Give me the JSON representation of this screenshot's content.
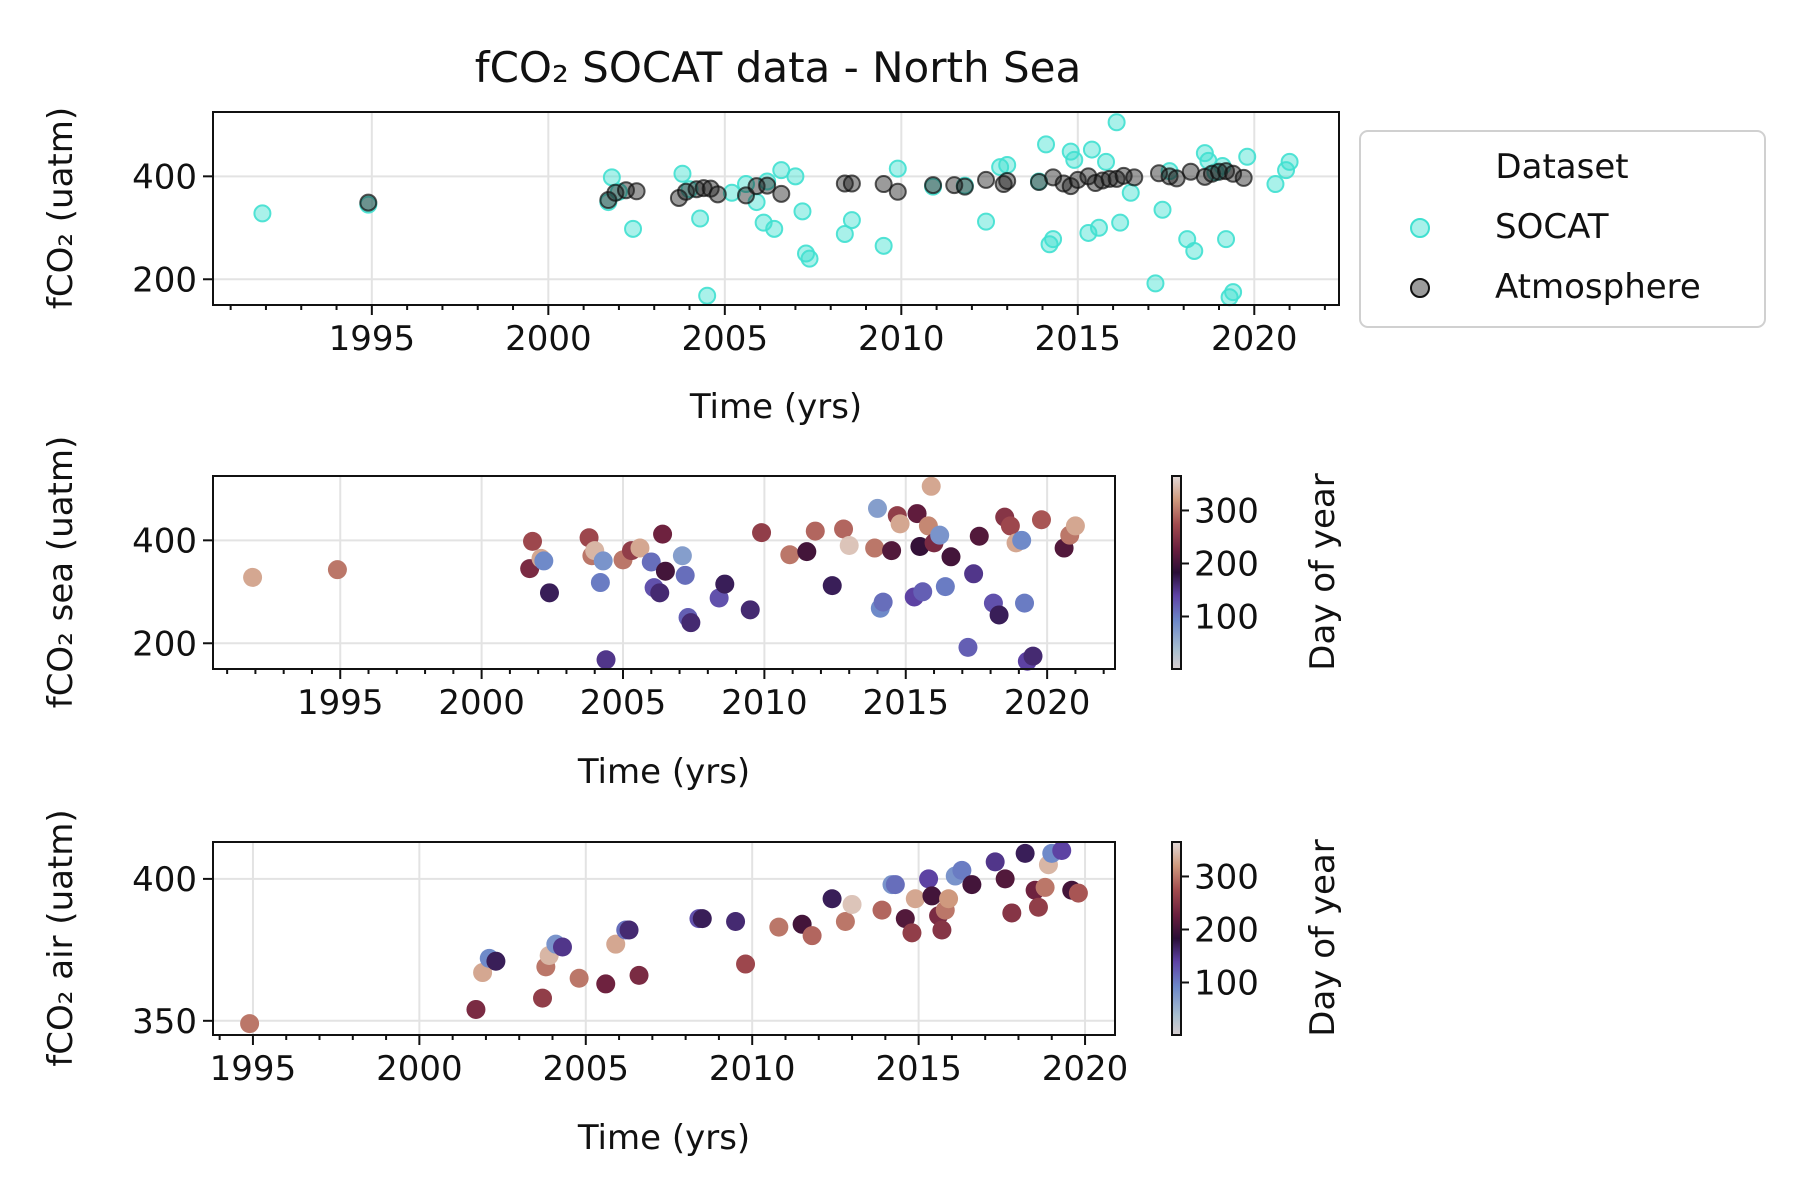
{
  "figure": {
    "title": "fCO₂ SOCAT data - North Sea",
    "colorbar_label": "Day of year",
    "colormap": "twilight_shifted (day of year)",
    "legend": {
      "title": "Dataset",
      "placement": "outside right of top panel",
      "entries": [
        {
          "label": "SOCAT",
          "color": "#40e0d0"
        },
        {
          "label": "Atmosphere",
          "color": "#222222"
        }
      ]
    }
  },
  "chart_data": [
    {
      "type": "scatter",
      "panel": "top",
      "xlabel": "Time (yrs)",
      "ylabel": "fCO₂ (uatm)",
      "xlim": [
        1990.5,
        2022.4
      ],
      "ylim": [
        150,
        525
      ],
      "xticks": [
        1995,
        2000,
        2005,
        2010,
        2015,
        2020
      ],
      "yticks": [
        200,
        400
      ],
      "grid": true,
      "series": [
        {
          "name": "SOCAT",
          "color": "#40e0d0",
          "x": [
            1991.9,
            1994.9,
            2001.7,
            2001.8,
            2002.0,
            2002.4,
            2003.8,
            2004.0,
            2004.3,
            2004.5,
            2005.2,
            2005.6,
            2005.9,
            2006.1,
            2006.2,
            2006.4,
            2006.6,
            2007.0,
            2007.2,
            2007.3,
            2007.4,
            2008.4,
            2008.6,
            2009.5,
            2009.9,
            2010.9,
            2011.8,
            2012.4,
            2012.8,
            2013.0,
            2013.9,
            2014.1,
            2014.2,
            2014.3,
            2014.8,
            2014.9,
            2015.3,
            2015.4,
            2015.6,
            2015.8,
            2016.1,
            2016.2,
            2016.5,
            2017.2,
            2017.4,
            2017.6,
            2018.1,
            2018.3,
            2018.6,
            2018.7,
            2018.9,
            2019.1,
            2019.2,
            2019.3,
            2019.4,
            2019.8,
            2020.6,
            2020.9,
            2021.0
          ],
          "y": [
            328,
            345,
            350,
            398,
            370,
            298,
            405,
            375,
            318,
            168,
            368,
            385,
            350,
            310,
            390,
            298,
            412,
            400,
            332,
            250,
            240,
            288,
            315,
            265,
            415,
            380,
            382,
            312,
            418,
            422,
            390,
            462,
            268,
            278,
            448,
            432,
            290,
            452,
            300,
            428,
            505,
            310,
            368,
            192,
            335,
            410,
            278,
            255,
            445,
            430,
            408,
            420,
            278,
            165,
            175,
            438,
            385,
            412,
            428
          ]
        },
        {
          "name": "Atmosphere",
          "color": "#222222",
          "x": [
            1994.9,
            2001.7,
            2001.9,
            2002.2,
            2002.5,
            2003.7,
            2003.9,
            2004.2,
            2004.4,
            2004.6,
            2004.8,
            2005.6,
            2005.9,
            2006.2,
            2006.6,
            2008.4,
            2008.6,
            2009.5,
            2009.9,
            2010.9,
            2011.5,
            2011.8,
            2012.4,
            2012.9,
            2013.0,
            2013.9,
            2014.3,
            2014.6,
            2014.8,
            2015.0,
            2015.3,
            2015.5,
            2015.7,
            2015.9,
            2016.1,
            2016.3,
            2016.6,
            2017.3,
            2017.6,
            2017.8,
            2018.2,
            2018.6,
            2018.8,
            2019.0,
            2019.2,
            2019.4,
            2019.7
          ],
          "y": [
            349,
            354,
            368,
            373,
            371,
            358,
            370,
            375,
            377,
            376,
            365,
            363,
            381,
            382,
            366,
            386,
            386,
            385,
            370,
            383,
            383,
            380,
            393,
            385,
            391,
            389,
            398,
            386,
            381,
            393,
            400,
            387,
            392,
            395,
            395,
            401,
            398,
            406,
            400,
            396,
            409,
            399,
            405,
            409,
            410,
            405,
            397
          ]
        }
      ]
    },
    {
      "type": "scatter",
      "panel": "middle",
      "color_by": "Day of year",
      "xlabel": "Time (yrs)",
      "ylabel": "fCO₂ sea (uatm)",
      "xlim": [
        1990.5,
        2022.4
      ],
      "ylim": [
        150,
        525
      ],
      "xticks": [
        1995,
        2000,
        2005,
        2010,
        2015,
        2020
      ],
      "yticks": [
        200,
        400
      ],
      "colorbar_ticks": [
        100,
        200,
        300
      ],
      "colorbar_range": [
        1,
        365
      ],
      "grid": true,
      "points": [
        {
          "x": 1991.9,
          "y": 328,
          "c": 330
        },
        {
          "x": 1994.9,
          "y": 343,
          "c": 300
        },
        {
          "x": 2001.7,
          "y": 345,
          "c": 240
        },
        {
          "x": 2001.8,
          "y": 398,
          "c": 270
        },
        {
          "x": 2002.1,
          "y": 365,
          "c": 330
        },
        {
          "x": 2002.2,
          "y": 360,
          "c": 90
        },
        {
          "x": 2002.4,
          "y": 298,
          "c": 170
        },
        {
          "x": 2003.8,
          "y": 405,
          "c": 270
        },
        {
          "x": 2003.9,
          "y": 370,
          "c": 300
        },
        {
          "x": 2004.0,
          "y": 380,
          "c": 340
        },
        {
          "x": 2004.2,
          "y": 318,
          "c": 100
        },
        {
          "x": 2004.4,
          "y": 168,
          "c": 150
        },
        {
          "x": 2004.3,
          "y": 360,
          "c": 80
        },
        {
          "x": 2005.0,
          "y": 362,
          "c": 300
        },
        {
          "x": 2005.3,
          "y": 380,
          "c": 260
        },
        {
          "x": 2005.6,
          "y": 385,
          "c": 330
        },
        {
          "x": 2006.0,
          "y": 358,
          "c": 110
        },
        {
          "x": 2006.1,
          "y": 308,
          "c": 130
        },
        {
          "x": 2006.3,
          "y": 298,
          "c": 160
        },
        {
          "x": 2006.4,
          "y": 412,
          "c": 230
        },
        {
          "x": 2006.5,
          "y": 340,
          "c": 200
        },
        {
          "x": 2007.1,
          "y": 370,
          "c": 70
        },
        {
          "x": 2007.2,
          "y": 332,
          "c": 110
        },
        {
          "x": 2007.3,
          "y": 250,
          "c": 120
        },
        {
          "x": 2007.4,
          "y": 240,
          "c": 160
        },
        {
          "x": 2008.4,
          "y": 288,
          "c": 130
        },
        {
          "x": 2008.6,
          "y": 315,
          "c": 170
        },
        {
          "x": 2009.5,
          "y": 265,
          "c": 160
        },
        {
          "x": 2009.9,
          "y": 415,
          "c": 260
        },
        {
          "x": 2010.9,
          "y": 372,
          "c": 300
        },
        {
          "x": 2011.5,
          "y": 378,
          "c": 200
        },
        {
          "x": 2011.8,
          "y": 418,
          "c": 290
        },
        {
          "x": 2012.4,
          "y": 312,
          "c": 170
        },
        {
          "x": 2012.8,
          "y": 422,
          "c": 290
        },
        {
          "x": 2013.0,
          "y": 390,
          "c": 350
        },
        {
          "x": 2013.9,
          "y": 385,
          "c": 300
        },
        {
          "x": 2014.0,
          "y": 462,
          "c": 70
        },
        {
          "x": 2014.1,
          "y": 268,
          "c": 90
        },
        {
          "x": 2014.2,
          "y": 280,
          "c": 110
        },
        {
          "x": 2014.5,
          "y": 380,
          "c": 210
        },
        {
          "x": 2014.7,
          "y": 448,
          "c": 260
        },
        {
          "x": 2014.8,
          "y": 432,
          "c": 330
        },
        {
          "x": 2015.3,
          "y": 290,
          "c": 140
        },
        {
          "x": 2015.4,
          "y": 452,
          "c": 220
        },
        {
          "x": 2015.5,
          "y": 388,
          "c": 190
        },
        {
          "x": 2015.6,
          "y": 300,
          "c": 120
        },
        {
          "x": 2015.8,
          "y": 428,
          "c": 310
        },
        {
          "x": 2015.9,
          "y": 505,
          "c": 330
        },
        {
          "x": 2016.0,
          "y": 395,
          "c": 240
        },
        {
          "x": 2016.2,
          "y": 410,
          "c": 80
        },
        {
          "x": 2016.4,
          "y": 310,
          "c": 100
        },
        {
          "x": 2016.6,
          "y": 368,
          "c": 200
        },
        {
          "x": 2017.2,
          "y": 192,
          "c": 120
        },
        {
          "x": 2017.4,
          "y": 335,
          "c": 150
        },
        {
          "x": 2017.6,
          "y": 408,
          "c": 210
        },
        {
          "x": 2018.1,
          "y": 278,
          "c": 130
        },
        {
          "x": 2018.3,
          "y": 255,
          "c": 170
        },
        {
          "x": 2018.5,
          "y": 445,
          "c": 250
        },
        {
          "x": 2018.7,
          "y": 428,
          "c": 270
        },
        {
          "x": 2018.9,
          "y": 395,
          "c": 330
        },
        {
          "x": 2019.1,
          "y": 400,
          "c": 90
        },
        {
          "x": 2019.2,
          "y": 278,
          "c": 100
        },
        {
          "x": 2019.3,
          "y": 165,
          "c": 140
        },
        {
          "x": 2019.5,
          "y": 175,
          "c": 160
        },
        {
          "x": 2019.8,
          "y": 440,
          "c": 280
        },
        {
          "x": 2020.6,
          "y": 385,
          "c": 210
        },
        {
          "x": 2020.8,
          "y": 410,
          "c": 300
        },
        {
          "x": 2021.0,
          "y": 428,
          "c": 330
        }
      ]
    },
    {
      "type": "scatter",
      "panel": "bottom",
      "color_by": "Day of year",
      "xlabel": "Time (yrs)",
      "ylabel": "fCO₂ air (uatm)",
      "xlim": [
        1993.8,
        2020.9
      ],
      "ylim": [
        345,
        413
      ],
      "xticks": [
        1995,
        2000,
        2005,
        2010,
        2015,
        2020
      ],
      "yticks": [
        350,
        400
      ],
      "colorbar_ticks": [
        100,
        200,
        300
      ],
      "colorbar_range": [
        1,
        365
      ],
      "grid": true,
      "points": [
        {
          "x": 1994.9,
          "y": 349,
          "c": 300
        },
        {
          "x": 2001.7,
          "y": 354,
          "c": 240
        },
        {
          "x": 2001.9,
          "y": 367,
          "c": 330
        },
        {
          "x": 2002.1,
          "y": 372,
          "c": 90
        },
        {
          "x": 2002.3,
          "y": 371,
          "c": 170
        },
        {
          "x": 2003.7,
          "y": 358,
          "c": 260
        },
        {
          "x": 2003.8,
          "y": 369,
          "c": 300
        },
        {
          "x": 2003.9,
          "y": 373,
          "c": 340
        },
        {
          "x": 2004.1,
          "y": 377,
          "c": 80
        },
        {
          "x": 2004.3,
          "y": 376,
          "c": 150
        },
        {
          "x": 2004.8,
          "y": 365,
          "c": 300
        },
        {
          "x": 2005.6,
          "y": 363,
          "c": 230
        },
        {
          "x": 2005.9,
          "y": 377,
          "c": 330
        },
        {
          "x": 2006.2,
          "y": 382,
          "c": 110
        },
        {
          "x": 2006.3,
          "y": 382,
          "c": 160
        },
        {
          "x": 2006.6,
          "y": 366,
          "c": 240
        },
        {
          "x": 2008.4,
          "y": 386,
          "c": 130
        },
        {
          "x": 2008.5,
          "y": 386,
          "c": 170
        },
        {
          "x": 2009.5,
          "y": 385,
          "c": 160
        },
        {
          "x": 2009.8,
          "y": 370,
          "c": 270
        },
        {
          "x": 2010.8,
          "y": 383,
          "c": 300
        },
        {
          "x": 2011.5,
          "y": 384,
          "c": 200
        },
        {
          "x": 2011.8,
          "y": 380,
          "c": 290
        },
        {
          "x": 2012.4,
          "y": 393,
          "c": 170
        },
        {
          "x": 2012.8,
          "y": 385,
          "c": 300
        },
        {
          "x": 2013.0,
          "y": 391,
          "c": 350
        },
        {
          "x": 2013.9,
          "y": 389,
          "c": 290
        },
        {
          "x": 2014.2,
          "y": 398,
          "c": 80
        },
        {
          "x": 2014.3,
          "y": 398,
          "c": 110
        },
        {
          "x": 2014.6,
          "y": 386,
          "c": 210
        },
        {
          "x": 2014.8,
          "y": 381,
          "c": 260
        },
        {
          "x": 2014.9,
          "y": 393,
          "c": 330
        },
        {
          "x": 2015.3,
          "y": 400,
          "c": 140
        },
        {
          "x": 2015.4,
          "y": 394,
          "c": 200
        },
        {
          "x": 2015.6,
          "y": 387,
          "c": 240
        },
        {
          "x": 2015.7,
          "y": 382,
          "c": 250
        },
        {
          "x": 2015.8,
          "y": 389,
          "c": 300
        },
        {
          "x": 2015.9,
          "y": 393,
          "c": 320
        },
        {
          "x": 2016.1,
          "y": 401,
          "c": 80
        },
        {
          "x": 2016.3,
          "y": 403,
          "c": 100
        },
        {
          "x": 2016.6,
          "y": 398,
          "c": 200
        },
        {
          "x": 2017.3,
          "y": 406,
          "c": 150
        },
        {
          "x": 2017.6,
          "y": 400,
          "c": 210
        },
        {
          "x": 2017.8,
          "y": 388,
          "c": 250
        },
        {
          "x": 2018.2,
          "y": 409,
          "c": 170
        },
        {
          "x": 2018.5,
          "y": 396,
          "c": 230
        },
        {
          "x": 2018.6,
          "y": 390,
          "c": 260
        },
        {
          "x": 2018.8,
          "y": 397,
          "c": 300
        },
        {
          "x": 2018.9,
          "y": 405,
          "c": 340
        },
        {
          "x": 2019.0,
          "y": 409,
          "c": 90
        },
        {
          "x": 2019.3,
          "y": 410,
          "c": 140
        },
        {
          "x": 2019.6,
          "y": 396,
          "c": 200
        },
        {
          "x": 2019.8,
          "y": 395,
          "c": 280
        }
      ]
    }
  ]
}
